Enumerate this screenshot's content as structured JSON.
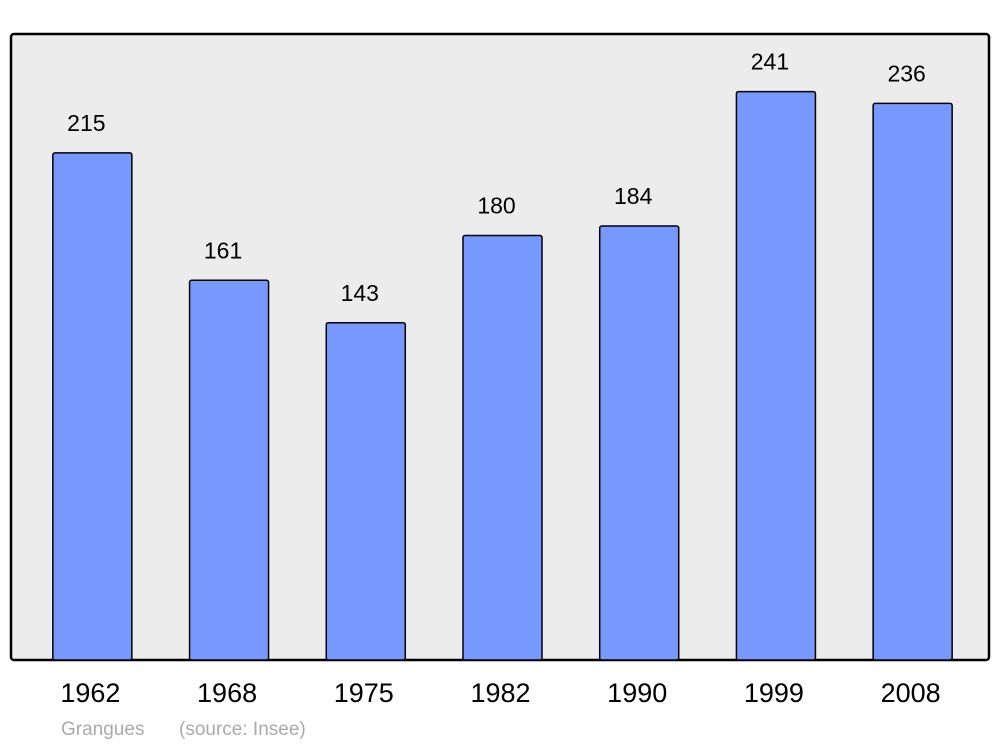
{
  "chart_data": {
    "type": "bar",
    "categories": [
      "1962",
      "1968",
      "1975",
      "1982",
      "1990",
      "1999",
      "2008"
    ],
    "values": [
      215,
      161,
      143,
      180,
      184,
      241,
      236
    ],
    "color": "#7799ff",
    "ylim": [
      0,
      265
    ],
    "caption": "Grangues",
    "source": "(source: Insee)"
  }
}
